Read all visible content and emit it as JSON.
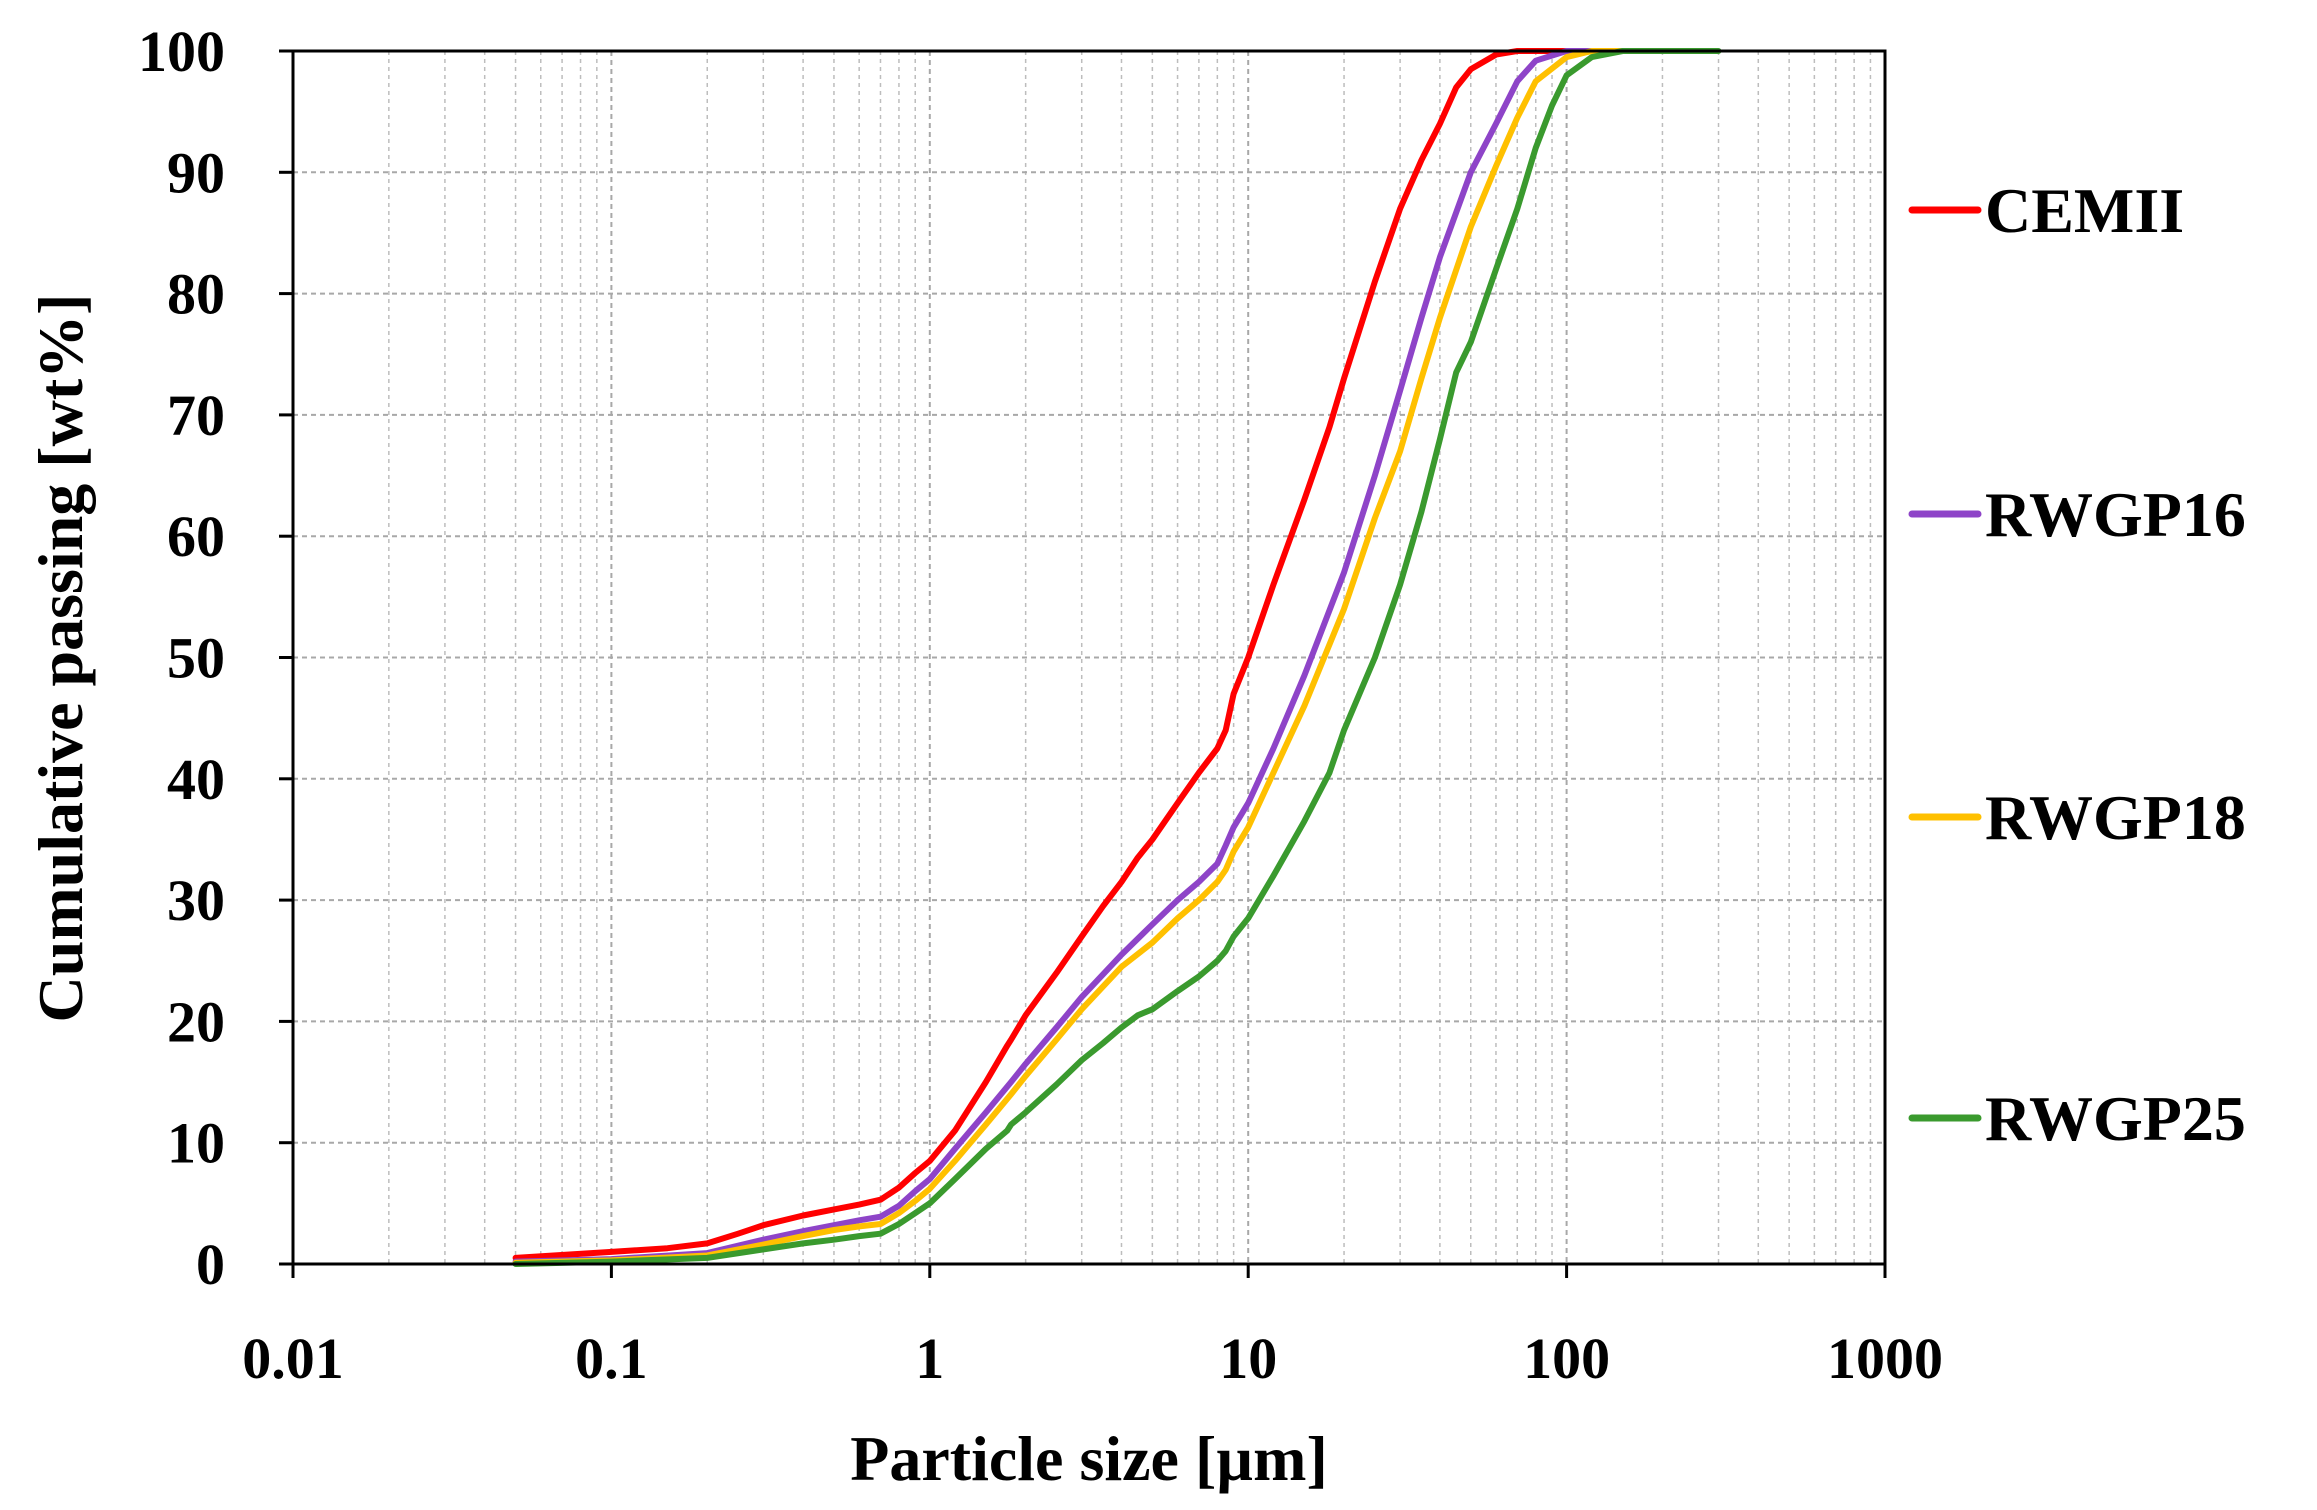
{
  "chart_data": {
    "type": "line",
    "title": "",
    "xlabel": "Particle size [µm]",
    "ylabel": "Cumulative passing [wt%]",
    "xscale": "log",
    "xlim": [
      0.01,
      1000
    ],
    "ylim": [
      0,
      100
    ],
    "x_ticks": [
      0.01,
      0.1,
      1,
      10,
      100,
      1000
    ],
    "x_tick_labels": [
      "0.01",
      "0.1",
      "1",
      "10",
      "100",
      "1000"
    ],
    "y_ticks": [
      0,
      10,
      20,
      30,
      40,
      50,
      60,
      70,
      80,
      90,
      100
    ],
    "y_tick_labels": [
      "0",
      "10",
      "20",
      "30",
      "40",
      "50",
      "60",
      "70",
      "80",
      "90",
      "100"
    ],
    "grid": true,
    "legend_position": "right",
    "series": [
      {
        "name": "CEMII",
        "color": "#ff0000",
        "x": [
          0.05,
          0.1,
          0.15,
          0.2,
          0.25,
          0.3,
          0.4,
          0.5,
          0.6,
          0.7,
          0.8,
          0.9,
          1,
          1.2,
          1.5,
          1.75,
          1.8,
          2,
          2.5,
          3,
          3.5,
          4,
          4.5,
          5,
          6,
          7,
          8,
          8.5,
          9,
          10,
          12,
          15,
          18,
          20,
          25,
          30,
          35,
          40,
          45,
          50,
          60,
          70,
          80,
          100
        ],
        "y": [
          0.5,
          1.0,
          1.3,
          1.7,
          2.5,
          3.2,
          4.0,
          4.5,
          4.9,
          5.3,
          6.3,
          7.5,
          8.5,
          11,
          15,
          18,
          18.5,
          20.5,
          24,
          27,
          29.5,
          31.5,
          33.5,
          35,
          38,
          40.5,
          42.5,
          44,
          47,
          50,
          56,
          63,
          69,
          73,
          81,
          87,
          91,
          94,
          97,
          98.5,
          99.7,
          100,
          100,
          100
        ]
      },
      {
        "name": "RWGP16",
        "color": "#8e44c8",
        "x": [
          0.05,
          0.1,
          0.2,
          0.3,
          0.4,
          0.5,
          0.6,
          0.7,
          0.8,
          0.9,
          1,
          1.2,
          1.5,
          1.8,
          2,
          2.5,
          3,
          4,
          5,
          6,
          7,
          8,
          8.5,
          9,
          10,
          12,
          15,
          20,
          25,
          30,
          35,
          40,
          50,
          60,
          70,
          80,
          100,
          120
        ],
        "y": [
          0.2,
          0.4,
          0.9,
          2.0,
          2.7,
          3.2,
          3.6,
          3.9,
          4.8,
          6.0,
          7.0,
          9.5,
          12.5,
          15,
          16.5,
          19.5,
          22,
          25.5,
          28,
          30,
          31.5,
          33,
          34.5,
          36,
          38,
          42.5,
          48.5,
          57,
          65,
          72,
          78,
          83,
          90,
          94,
          97.5,
          99.2,
          100,
          100
        ]
      },
      {
        "name": "RWGP18",
        "color": "#ffc000",
        "x": [
          0.05,
          0.1,
          0.2,
          0.3,
          0.4,
          0.5,
          0.6,
          0.7,
          0.8,
          0.9,
          1,
          1.2,
          1.5,
          1.8,
          2,
          2.5,
          3,
          4,
          5,
          6,
          7,
          8,
          8.5,
          9,
          10,
          12,
          15,
          20,
          25,
          30,
          35,
          40,
          50,
          60,
          70,
          80,
          100,
          120,
          150
        ],
        "y": [
          0.1,
          0.3,
          0.7,
          1.6,
          2.3,
          2.8,
          3.1,
          3.3,
          4.2,
          5.2,
          6.2,
          8.5,
          11.5,
          14,
          15.5,
          18.5,
          21,
          24.5,
          26.5,
          28.5,
          30,
          31.5,
          32.5,
          34,
          36,
          40.5,
          46,
          54,
          61.5,
          67,
          73,
          78,
          85.5,
          90.5,
          94.5,
          97.5,
          99.5,
          100,
          100
        ]
      },
      {
        "name": "RWGP25",
        "color": "#3a9a2e",
        "x": [
          0.05,
          0.1,
          0.2,
          0.3,
          0.4,
          0.5,
          0.6,
          0.7,
          0.8,
          0.9,
          1,
          1.2,
          1.5,
          1.75,
          1.8,
          2,
          2.5,
          3,
          3.5,
          4,
          4.5,
          5,
          6,
          7,
          8,
          8.5,
          9,
          10,
          12,
          15,
          18,
          20,
          25,
          30,
          35,
          40,
          45,
          50,
          60,
          70,
          80,
          90,
          100,
          120,
          150,
          200,
          300
        ],
        "y": [
          0.0,
          0.2,
          0.5,
          1.2,
          1.7,
          2.0,
          2.3,
          2.5,
          3.3,
          4.2,
          5.0,
          7.0,
          9.5,
          11,
          11.5,
          12.5,
          14.8,
          16.8,
          18.2,
          19.5,
          20.5,
          21,
          22.5,
          23.7,
          25,
          25.8,
          27,
          28.5,
          32,
          36.5,
          40.5,
          44,
          50,
          56,
          62,
          68,
          73.5,
          76,
          82,
          87,
          92,
          95.5,
          98,
          99.5,
          100,
          100,
          100
        ]
      }
    ]
  }
}
